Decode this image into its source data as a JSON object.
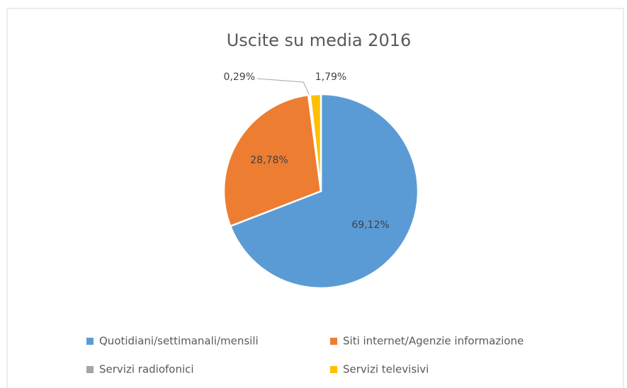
{
  "chart_data": {
    "type": "pie",
    "title": "Uscite su media 2016",
    "categories": [
      "Quotidiani/settimanali/mensili",
      "Siti internet/Agenzie informazione",
      "Servizi radiofonici",
      "Servizi televisivi"
    ],
    "values": [
      69.12,
      28.78,
      0.29,
      1.79
    ],
    "value_labels": [
      "69,12%",
      "28,78%",
      "0,29%",
      "1,79%"
    ],
    "colors": [
      "#5b9bd5",
      "#ed7d31",
      "#a5a5a5",
      "#ffc000"
    ],
    "legend": "bottom"
  }
}
